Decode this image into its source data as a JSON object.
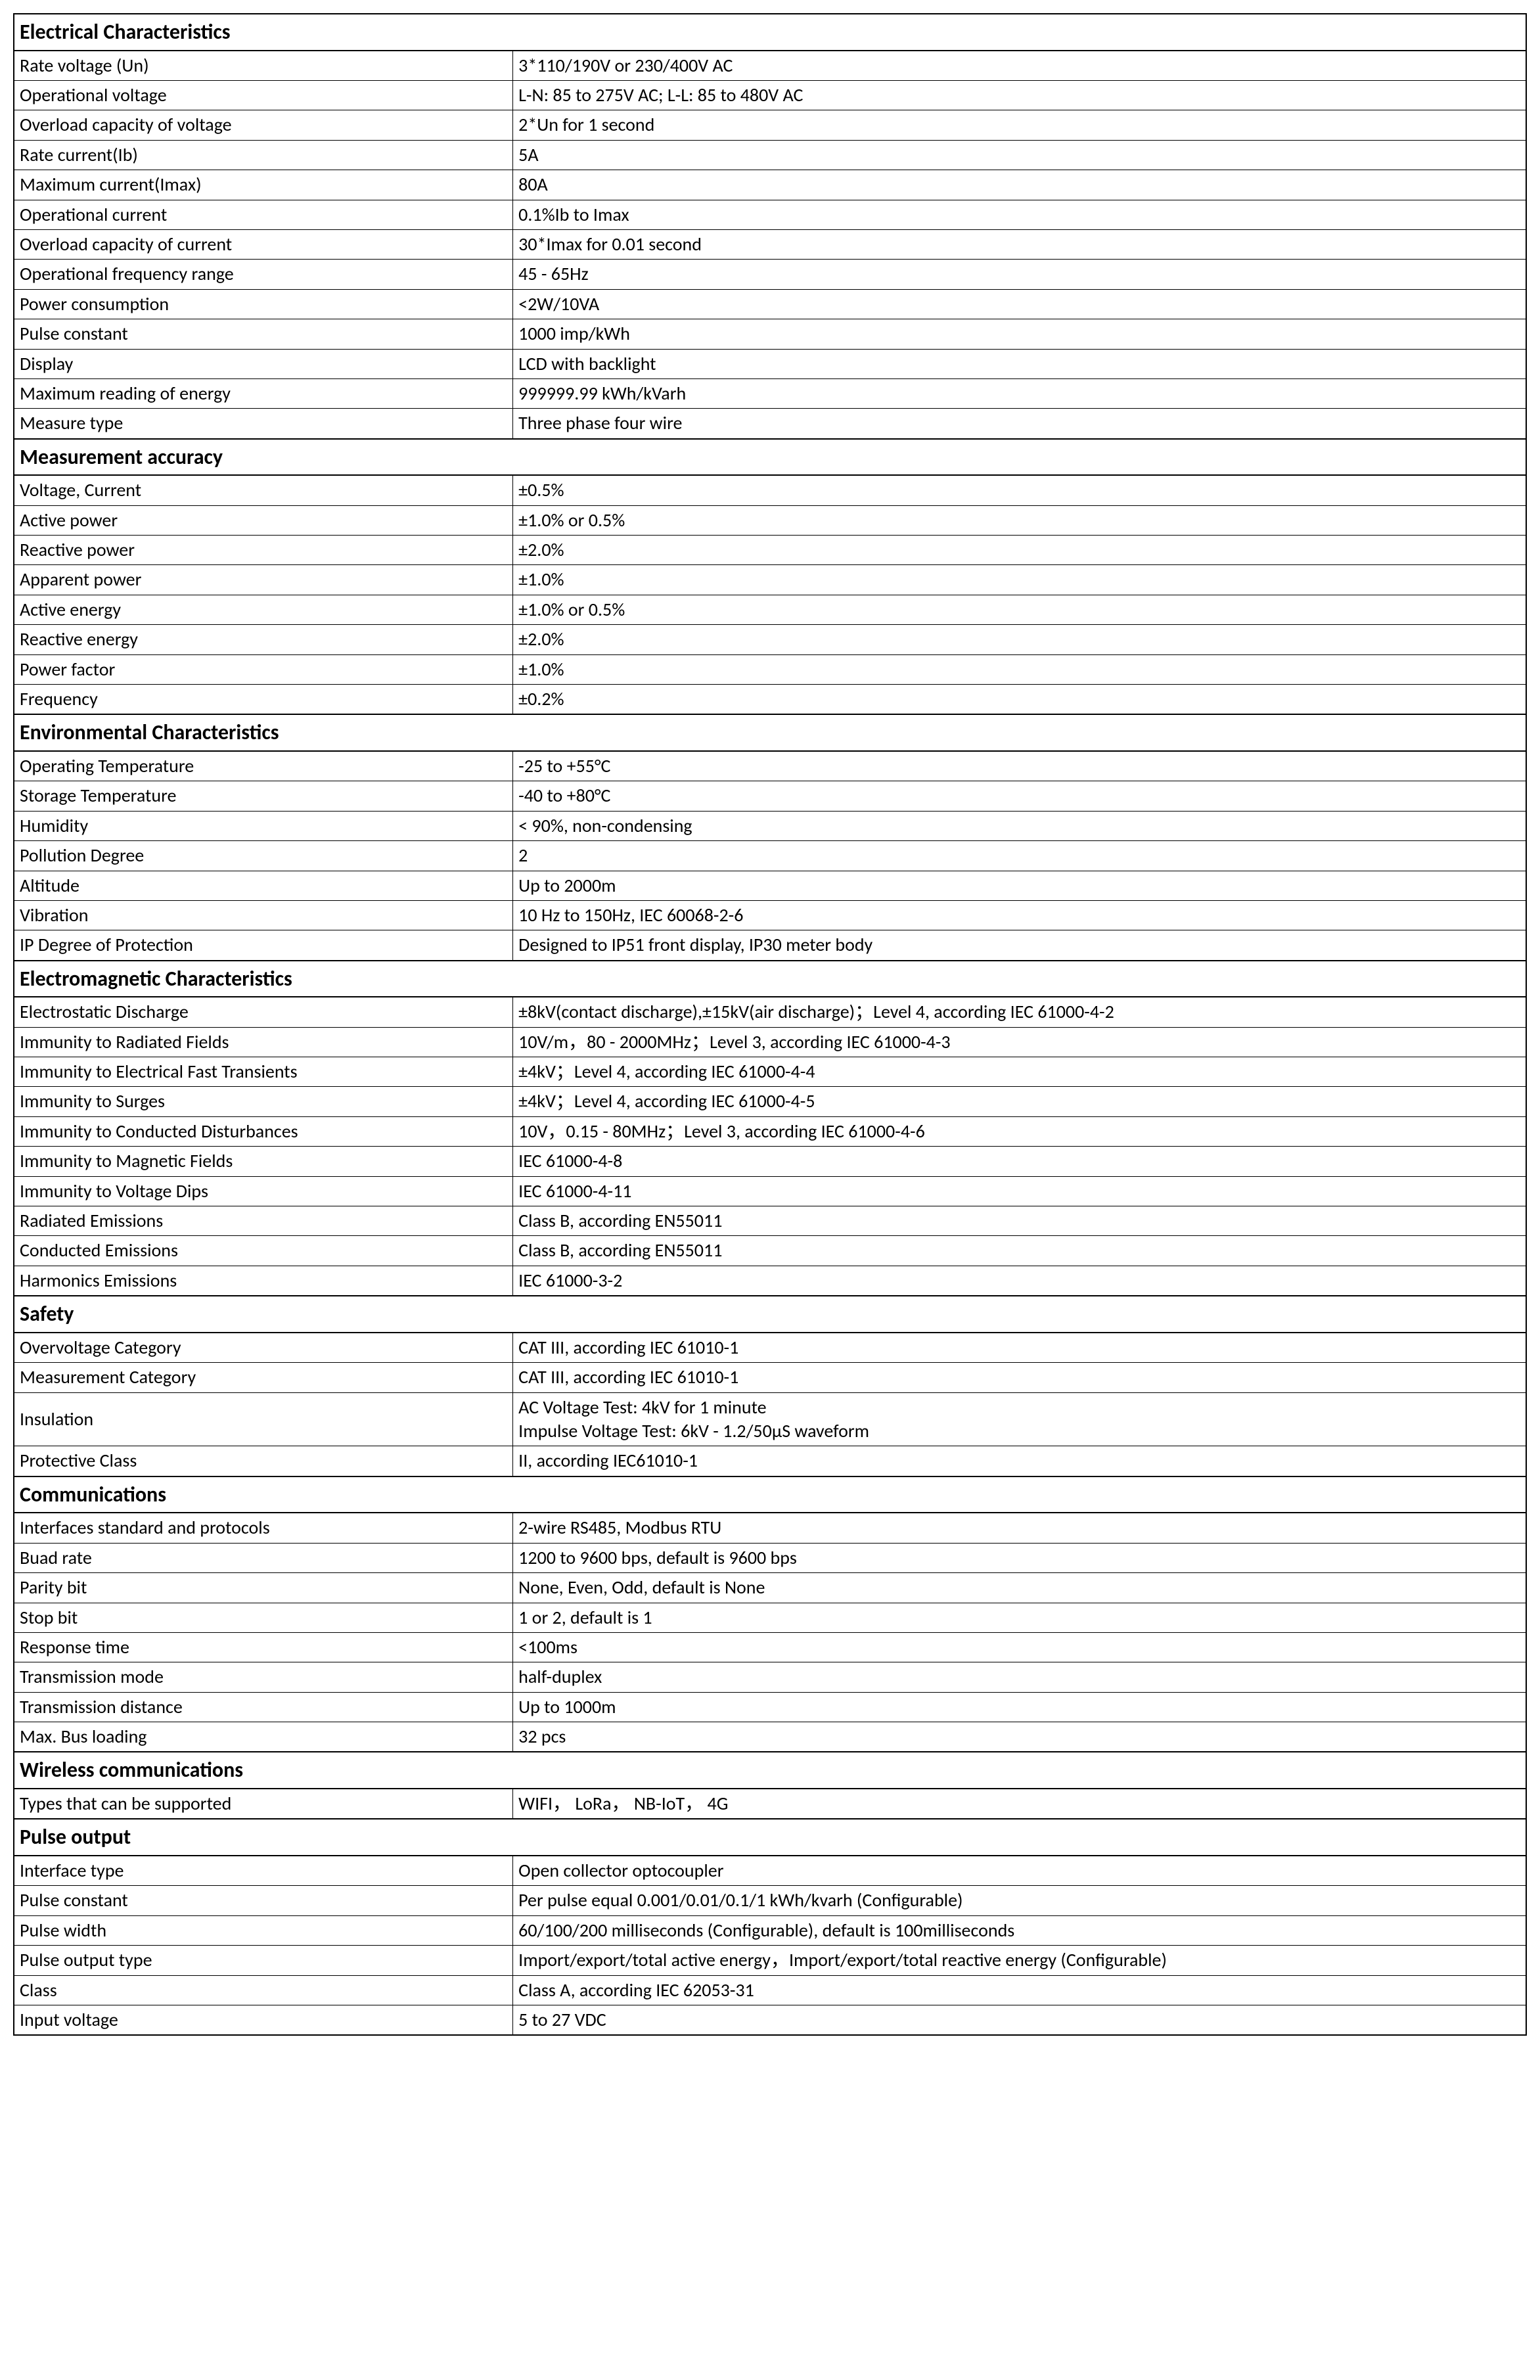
{
  "styles": {
    "border_color": "#000000",
    "background_color": "#ffffff",
    "text_color": "#000000",
    "body_fontsize": 28,
    "header_fontsize": 32,
    "label_col_width_pct": 33,
    "value_col_width_pct": 67
  },
  "sections": [
    {
      "title": "Electrical Characteristics",
      "rows": [
        {
          "label": "Rate voltage (Un)",
          "value": "3*110/190V or 230/400V AC"
        },
        {
          "label": "Operational voltage",
          "value": "L-N: 85 to 275V AC; L-L: 85 to 480V AC"
        },
        {
          "label": "Overload capacity of voltage",
          "value": "2*Un for 1 second"
        },
        {
          "label": "Rate current(Ib)",
          "value": "5A"
        },
        {
          "label": "Maximum current(Imax)",
          "value": "80A"
        },
        {
          "label": "Operational current",
          "value": "0.1%Ib to Imax"
        },
        {
          "label": "Overload capacity of current",
          "value": "30*Imax for 0.01 second"
        },
        {
          "label": "Operational frequency range",
          "value": "45 - 65Hz"
        },
        {
          "label": "Power consumption",
          "value": "<2W/10VA"
        },
        {
          "label": "Pulse constant",
          "value": "1000 imp/kWh"
        },
        {
          "label": "Display",
          "value": "LCD with backlight"
        },
        {
          "label": "Maximum reading of energy",
          "value": "999999.99 kWh/kVarh"
        },
        {
          "label": "Measure type",
          "value": "Three phase four wire"
        }
      ]
    },
    {
      "title": "Measurement accuracy",
      "rows": [
        {
          "label": "Voltage, Current",
          "value": "±0.5%"
        },
        {
          "label": "Active power",
          "value": "±1.0% or 0.5%"
        },
        {
          "label": "Reactive power",
          "value": "±2.0%"
        },
        {
          "label": "Apparent power",
          "value": "±1.0%"
        },
        {
          "label": "Active energy",
          "value": "±1.0% or 0.5%"
        },
        {
          "label": "Reactive energy",
          "value": "±2.0%"
        },
        {
          "label": "Power factor",
          "value": "±1.0%"
        },
        {
          "label": "Frequency",
          "value": "±0.2%"
        }
      ]
    },
    {
      "title": "Environmental Characteristics",
      "rows": [
        {
          "label": "Operating Temperature",
          "value": "-25 to +55°C"
        },
        {
          "label": "Storage Temperature",
          "value": "-40 to +80°C"
        },
        {
          "label": "Humidity",
          "value": "< 90%, non-condensing"
        },
        {
          "label": "Pollution Degree",
          "value": "2"
        },
        {
          "label": "Altitude",
          "value": "Up to 2000m"
        },
        {
          "label": "Vibration",
          "value": "10 Hz to 150Hz, IEC 60068-2-6"
        },
        {
          "label": "IP Degree of Protection",
          "value": "Designed to IP51 front display, IP30 meter body"
        }
      ]
    },
    {
      "title": "Electromagnetic Characteristics",
      "rows": [
        {
          "label": "Electrostatic Discharge",
          "value": "±8kV(contact discharge),±15kV(air discharge)；Level 4, according IEC 61000-4-2"
        },
        {
          "label": "Immunity to Radiated Fields",
          "value": "10V/m，80 - 2000MHz；Level 3, according IEC 61000-4-3"
        },
        {
          "label": "Immunity to Electrical Fast Transients",
          "value": "±4kV；Level 4, according IEC 61000-4-4"
        },
        {
          "label": "Immunity to Surges",
          "value": "±4kV；Level 4, according IEC 61000-4-5"
        },
        {
          "label": "Immunity to Conducted Disturbances",
          "value": "10V，0.15 - 80MHz；Level 3, according IEC 61000-4-6"
        },
        {
          "label": "Immunity to Magnetic Fields",
          "value": "IEC 61000-4-8"
        },
        {
          "label": "Immunity to Voltage Dips",
          "value": "IEC 61000-4-11"
        },
        {
          "label": "Radiated Emissions",
          "value": "Class B, according EN55011"
        },
        {
          "label": "Conducted Emissions",
          "value": "Class B, according EN55011"
        },
        {
          "label": "Harmonics Emissions",
          "value": "IEC 61000-3-2"
        }
      ]
    },
    {
      "title": "Safety",
      "rows": [
        {
          "label": "Overvoltage Category",
          "value": "CAT III, according IEC 61010-1"
        },
        {
          "label": "Measurement Category",
          "value": "CAT III, according IEC 61010-1"
        },
        {
          "label": "Insulation",
          "value": "AC Voltage Test: 4kV for 1 minute\nImpulse Voltage Test: 6kV - 1.2/50μS waveform",
          "multiline": true
        },
        {
          "label": "Protective Class",
          "value": "II, according IEC61010-1"
        }
      ]
    },
    {
      "title": "Communications",
      "rows": [
        {
          "label": "Interfaces standard and protocols",
          "value": "2-wire RS485, Modbus RTU"
        },
        {
          "label": "Buad rate",
          "value": "1200 to 9600 bps, default is 9600 bps"
        },
        {
          "label": "Parity bit",
          "value": "None, Even, Odd, default is None"
        },
        {
          "label": "Stop bit",
          "value": "1 or 2, default is 1"
        },
        {
          "label": "Response time",
          "value": "<100ms"
        },
        {
          "label": "Transmission mode",
          "value": "half-duplex"
        },
        {
          "label": "Transmission distance",
          "value": "Up to 1000m"
        },
        {
          "label": "Max. Bus loading",
          "value": "32 pcs"
        }
      ]
    },
    {
      "title": "Wireless communications",
      "rows": [
        {
          "label": "Types that can be supported",
          "value": "WIFI， LoRa， NB-IoT， 4G"
        }
      ]
    },
    {
      "title": "Pulse output",
      "rows": [
        {
          "label": "Interface type",
          "value": "Open collector optocoupler"
        },
        {
          "label": "Pulse constant",
          "value": "Per pulse equal 0.001/0.01/0.1/1 kWh/kvarh (Configurable)"
        },
        {
          "label": "Pulse width",
          "value": "60/100/200 milliseconds (Configurable), default is 100milliseconds"
        },
        {
          "label": "Pulse output type",
          "value": "Import/export/total active energy，Import/export/total reactive energy (Configurable)"
        },
        {
          "label": "Class",
          "value": "Class A, according IEC 62053-31"
        },
        {
          "label": "Input voltage",
          "value": "5 to 27 VDC"
        }
      ]
    }
  ]
}
